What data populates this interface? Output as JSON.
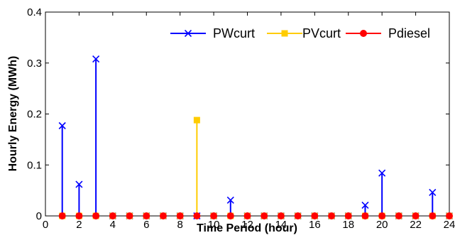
{
  "chart_data": {
    "type": "stem",
    "title": "",
    "xlabel": "Time Period (hour)",
    "ylabel": "Hourly Energy (MWh)",
    "xlim": [
      0,
      24
    ],
    "ylim": [
      0,
      0.4
    ],
    "xticks": [
      "0",
      "2",
      "4",
      "6",
      "8",
      "10",
      "12",
      "14",
      "16",
      "18",
      "20",
      "22",
      "24"
    ],
    "yticks": [
      "0",
      "0.1",
      "0.2",
      "0.3",
      "0.4"
    ],
    "x": [
      1,
      2,
      3,
      4,
      5,
      6,
      7,
      8,
      9,
      10,
      11,
      12,
      13,
      14,
      15,
      16,
      17,
      18,
      19,
      20,
      21,
      22,
      23,
      24
    ],
    "series": [
      {
        "name": "PWcurt",
        "color": "#0000ff",
        "marker": "x",
        "values": [
          0.177,
          0.062,
          0.308,
          0,
          0,
          0,
          0,
          0,
          0,
          0,
          0.031,
          0,
          0,
          0,
          0,
          0,
          0,
          0,
          0.021,
          0.084,
          0,
          0,
          0.046,
          0
        ]
      },
      {
        "name": "PVcurt",
        "color": "#ffcc00",
        "marker": "square",
        "values": [
          0,
          0,
          0,
          0,
          0,
          0,
          0,
          0,
          0.188,
          0,
          0,
          0,
          0,
          0,
          0,
          0,
          0,
          0,
          0,
          0,
          0,
          0,
          0,
          0
        ]
      },
      {
        "name": "Pdiesel",
        "color": "#ff0000",
        "marker": "circle",
        "values": [
          0,
          0,
          0,
          0,
          0,
          0,
          0,
          0,
          0,
          0,
          0,
          0,
          0,
          0,
          0,
          0,
          0,
          0,
          0,
          0,
          0,
          0,
          0,
          0
        ]
      }
    ],
    "legend": "top-right",
    "grid": false
  }
}
